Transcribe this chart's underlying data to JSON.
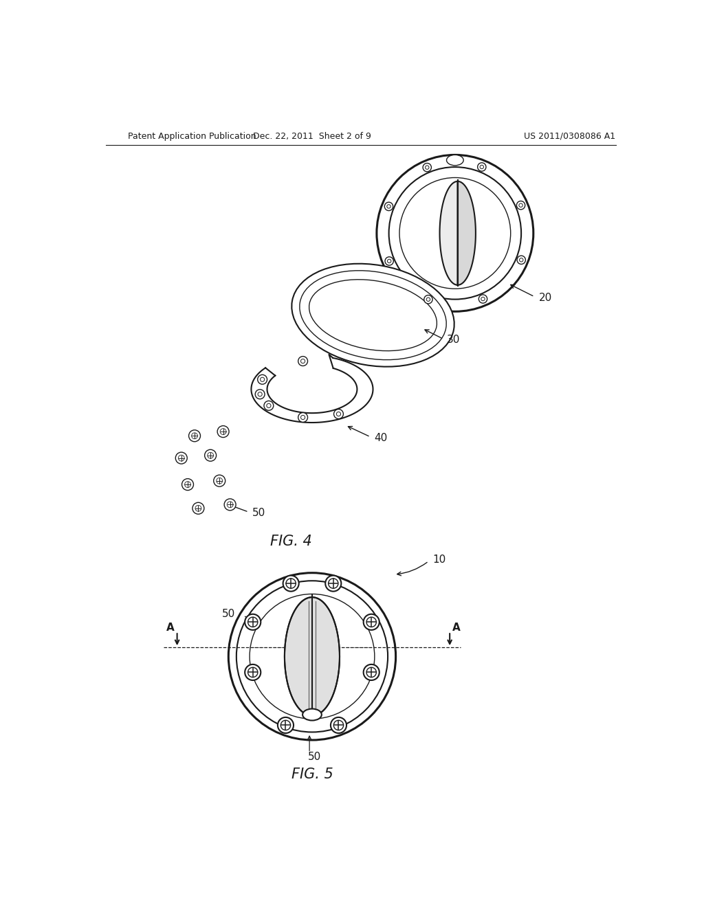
{
  "bg_color": "#ffffff",
  "line_color": "#1a1a1a",
  "header_left": "Patent Application Publication",
  "header_center": "Dec. 22, 2011  Sheet 2 of 9",
  "header_right": "US 2011/0308086 A1",
  "fig4_label": "FIG. 4",
  "fig5_label": "FIG. 5",
  "label_20": "20",
  "label_30": "30",
  "label_40": "40",
  "label_50": "50",
  "label_10": "10",
  "label_50_left": "50",
  "label_50_bottom": "50",
  "label_A": "A"
}
